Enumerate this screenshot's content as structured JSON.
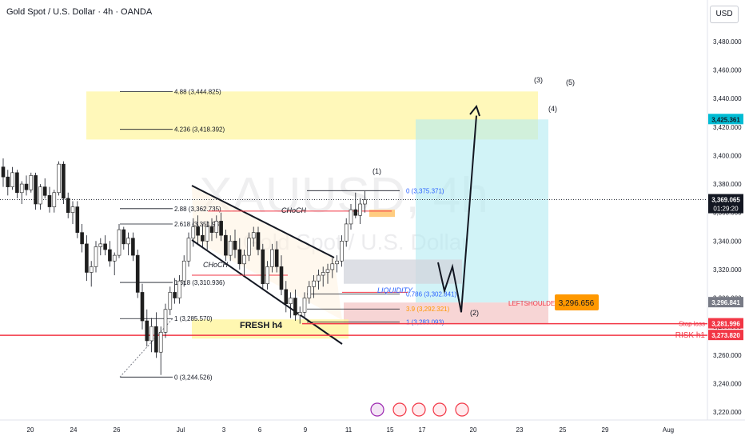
{
  "header": {
    "title": "Gold Spot / U.S. Dollar · 4h · OANDA"
  },
  "currency_button": {
    "label": "USD"
  },
  "watermark": {
    "symbol": "XAUUSD, 4h",
    "name": "Gold Spot / U.S. Dollar"
  },
  "colors": {
    "up": "#089981",
    "down": "#f23645",
    "candle_body": "#1e1e1e",
    "yellow_zone": "#fff59d",
    "cyan_zone": "#b2ebf2",
    "red_zone": "#f4c7c7",
    "gray_zone": "#d1d4dc",
    "orange_badge": "#ff9800",
    "red_line": "#f23645",
    "dark_label": "#131722"
  },
  "chart_data": {
    "type": "candlestick",
    "title": "Gold Spot / U.S. Dollar · 4h · OANDA",
    "y_axis": {
      "range": [
        3210,
        3500
      ],
      "ticks": [
        "3,480.000",
        "3,460.000",
        "3,440.000",
        "3,420.000",
        "3,400.000",
        "3,380.000",
        "3,360.000",
        "3,340.000",
        "3,320.000",
        "3,300.000",
        "3,280.000",
        "3,260.000",
        "3,240.000",
        "3,220.000"
      ]
    },
    "x_axis": {
      "ticks": [
        "20",
        "24",
        "26",
        "Jul",
        "3",
        "6",
        "9",
        "11",
        "15",
        "17",
        "20",
        "23",
        "25",
        "29",
        "Aug"
      ]
    },
    "price_labels": [
      {
        "value": 3425.361,
        "text": "3,425.361",
        "style": "cyan"
      },
      {
        "value": 3369.065,
        "text": "3,369.065",
        "style": "dark",
        "sub": "01:29:20"
      },
      {
        "value": 3296.841,
        "text": "3,296.841",
        "style": "gray"
      },
      {
        "value": 3281.996,
        "text": "3,281.996",
        "style": "red",
        "tag": "Stop loss"
      },
      {
        "value": 3273.82,
        "text": "3,273.820",
        "style": "red",
        "tag": "RISK h1"
      }
    ],
    "fib_levels": [
      {
        "ratio": "4.88",
        "value": 3444.825,
        "text": "4.88 (3,444.825)"
      },
      {
        "ratio": "4.236",
        "value": 3418.392,
        "text": "4.236 (3,418.392)"
      },
      {
        "ratio": "2.88",
        "value": 3362.735,
        "text": "2.88 (3,362.735)"
      },
      {
        "ratio": "2.618",
        "value": 3351.98,
        "text": "2.618 (3,351.98"
      },
      {
        "ratio": "1.618",
        "value": 3310.936,
        "text": "1.618 (3,310.936)"
      },
      {
        "ratio": "1",
        "value": 3285.57,
        "text": "1 (3,285.570)"
      },
      {
        "ratio": "0",
        "value": 3244.526,
        "text": "0 (3,244.526)"
      }
    ],
    "fib_levels_2": [
      {
        "value": 3375.371,
        "text": "0 (3,375.371)"
      },
      {
        "value": 3302.841,
        "text": "0.786 (3,302.841)"
      },
      {
        "value": 3292.321,
        "text": "3.9 (3,292.321)"
      },
      {
        "value": 3283.093,
        "text": "1 (3,283.093)"
      }
    ],
    "annotations": {
      "choch_top": "CHoCH",
      "choch_mid": "CHoCH",
      "liquidity": "LIQUIDITY",
      "fresh_h4": "FRESH h4",
      "leftshoulder": "LEFTSHOULDER",
      "leftshoulder_price": "3,296.656",
      "wave_1": "(1)",
      "wave_2": "(2)",
      "wave_3": "(3)",
      "wave_4": "(4)",
      "wave_5": "(5)"
    },
    "candles": [
      [
        3392,
        3398,
        3378,
        3385
      ],
      [
        3385,
        3390,
        3372,
        3378
      ],
      [
        3378,
        3392,
        3376,
        3388
      ],
      [
        3388,
        3390,
        3370,
        3374
      ],
      [
        3374,
        3382,
        3366,
        3380
      ],
      [
        3380,
        3386,
        3372,
        3376
      ],
      [
        3376,
        3388,
        3374,
        3386
      ],
      [
        3386,
        3388,
        3362,
        3366
      ],
      [
        3366,
        3380,
        3362,
        3378
      ],
      [
        3378,
        3384,
        3370,
        3372
      ],
      [
        3372,
        3378,
        3360,
        3364
      ],
      [
        3364,
        3376,
        3360,
        3374
      ],
      [
        3374,
        3396,
        3372,
        3394
      ],
      [
        3394,
        3396,
        3366,
        3370
      ],
      [
        3370,
        3374,
        3356,
        3360
      ],
      [
        3360,
        3368,
        3352,
        3364
      ],
      [
        3364,
        3368,
        3342,
        3346
      ],
      [
        3346,
        3352,
        3332,
        3338
      ],
      [
        3338,
        3344,
        3312,
        3318
      ],
      [
        3318,
        3326,
        3308,
        3322
      ],
      [
        3322,
        3340,
        3318,
        3336
      ],
      [
        3336,
        3342,
        3330,
        3338
      ],
      [
        3338,
        3344,
        3330,
        3334
      ],
      [
        3334,
        3340,
        3322,
        3326
      ],
      [
        3326,
        3332,
        3316,
        3330
      ],
      [
        3330,
        3352,
        3328,
        3348
      ],
      [
        3348,
        3350,
        3334,
        3338
      ],
      [
        3338,
        3346,
        3330,
        3342
      ],
      [
        3342,
        3346,
        3326,
        3330
      ],
      [
        3330,
        3334,
        3300,
        3304
      ],
      [
        3304,
        3310,
        3278,
        3284
      ],
      [
        3284,
        3292,
        3266,
        3270
      ],
      [
        3270,
        3286,
        3262,
        3280
      ],
      [
        3280,
        3290,
        3258,
        3262
      ],
      [
        3262,
        3280,
        3246,
        3276
      ],
      [
        3276,
        3296,
        3272,
        3292
      ],
      [
        3292,
        3308,
        3288,
        3304
      ],
      [
        3304,
        3314,
        3296,
        3300
      ],
      [
        3300,
        3316,
        3296,
        3312
      ],
      [
        3312,
        3330,
        3308,
        3326
      ],
      [
        3326,
        3346,
        3322,
        3342
      ],
      [
        3342,
        3356,
        3336,
        3350
      ],
      [
        3350,
        3358,
        3338,
        3344
      ],
      [
        3344,
        3352,
        3336,
        3340
      ],
      [
        3340,
        3354,
        3334,
        3350
      ],
      [
        3350,
        3356,
        3340,
        3346
      ],
      [
        3346,
        3358,
        3342,
        3354
      ],
      [
        3354,
        3360,
        3340,
        3344
      ],
      [
        3344,
        3348,
        3326,
        3330
      ],
      [
        3330,
        3344,
        3326,
        3340
      ],
      [
        3340,
        3348,
        3328,
        3334
      ],
      [
        3334,
        3342,
        3320,
        3324
      ],
      [
        3324,
        3334,
        3316,
        3330
      ],
      [
        3330,
        3346,
        3326,
        3342
      ],
      [
        3342,
        3350,
        3336,
        3346
      ],
      [
        3346,
        3350,
        3330,
        3334
      ],
      [
        3334,
        3338,
        3306,
        3310
      ],
      [
        3310,
        3326,
        3306,
        3322
      ],
      [
        3322,
        3338,
        3318,
        3334
      ],
      [
        3334,
        3340,
        3318,
        3322
      ],
      [
        3322,
        3330,
        3302,
        3306
      ],
      [
        3306,
        3312,
        3290,
        3296
      ],
      [
        3296,
        3304,
        3286,
        3300
      ],
      [
        3300,
        3306,
        3284,
        3288
      ],
      [
        3288,
        3294,
        3282,
        3290
      ],
      [
        3290,
        3304,
        3286,
        3300
      ],
      [
        3300,
        3312,
        3296,
        3308
      ],
      [
        3308,
        3316,
        3300,
        3312
      ],
      [
        3312,
        3320,
        3306,
        3316
      ],
      [
        3316,
        3322,
        3308,
        3318
      ],
      [
        3318,
        3324,
        3310,
        3320
      ],
      [
        3320,
        3328,
        3314,
        3324
      ],
      [
        3324,
        3330,
        3318,
        3326
      ],
      [
        3326,
        3344,
        3322,
        3340
      ],
      [
        3340,
        3356,
        3336,
        3352
      ],
      [
        3352,
        3366,
        3348,
        3362
      ],
      [
        3362,
        3374,
        3356,
        3358
      ],
      [
        3358,
        3370,
        3352,
        3366
      ],
      [
        3366,
        3375,
        3360,
        3369
      ]
    ]
  }
}
